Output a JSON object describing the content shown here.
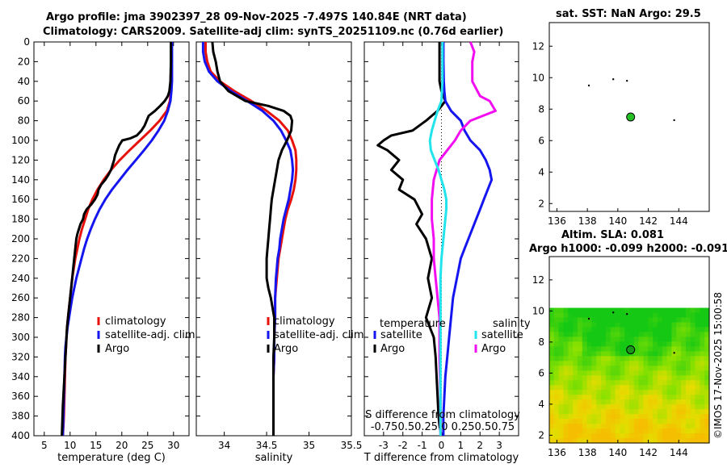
{
  "titles": {
    "main_line1": "Argo profile: jma 3902397_28 09-Nov-2025 -7.497S 140.84E (NRT data)",
    "main_line2": "Climatology: CARS2009. Satellite-adj clim: synTS_20251109.nc (0.76d earlier)",
    "sst": "sat. SST: NaN Argo: 29.5",
    "sla_line1": "Altim. SLA: 0.081",
    "sla_line2": "Argo h1000: -0.099 h2000: -0.091",
    "timestamp": "©IMOS 17-Nov-2025 15:00:58"
  },
  "colors": {
    "red": "#e8120c",
    "blue": "#1515f0",
    "black": "#000000",
    "cyan": "#22e4ec",
    "magenta": "#f20ef0"
  },
  "chart_data": [
    {
      "id": "temperature",
      "type": "line",
      "xlabel": "temperature (deg C)",
      "ylim": [
        0,
        400
      ],
      "xlim": [
        3,
        33
      ],
      "xticks": [
        "5",
        "10",
        "15",
        "20",
        "25",
        "30"
      ],
      "xtick_values": [
        5,
        10,
        15,
        20,
        25,
        30
      ],
      "yticks": [
        "0",
        "20",
        "40",
        "60",
        "80",
        "100",
        "120",
        "140",
        "160",
        "180",
        "200",
        "220",
        "240",
        "260",
        "280",
        "300",
        "320",
        "340",
        "360",
        "380",
        "400"
      ],
      "legend": [
        "climatology",
        "satellite-adj. clim",
        "Argo"
      ],
      "series": [
        {
          "name": "climatology",
          "color": "red",
          "x": [
            29.6,
            29.6,
            29.6,
            29.5,
            29.3,
            28.7,
            27.3,
            25.5,
            23.5,
            21.5,
            19.6,
            17.9,
            16.5,
            15.3,
            14.3,
            13.5,
            12.9,
            12.3,
            11.8,
            11.4,
            11.0,
            10.7,
            10.4,
            10.2,
            10.0,
            9.8,
            9.6,
            9.4,
            9.3,
            9.2,
            9.1,
            9.0,
            8.9,
            8.8,
            8.7,
            8.6
          ],
          "y": [
            0,
            20,
            40,
            50,
            60,
            70,
            80,
            90,
            100,
            110,
            120,
            130,
            140,
            150,
            160,
            170,
            180,
            190,
            200,
            210,
            220,
            230,
            240,
            250,
            260,
            270,
            280,
            290,
            300,
            310,
            320,
            340,
            360,
            380,
            390,
            400
          ]
        },
        {
          "name": "satellite-adj. clim",
          "color": "blue",
          "x": [
            29.7,
            29.7,
            29.7,
            29.6,
            29.4,
            28.9,
            28.2,
            27.1,
            25.8,
            24.3,
            22.7,
            21.1,
            19.6,
            18.1,
            16.8,
            15.7,
            14.8,
            14.0,
            13.3,
            12.7,
            12.2,
            11.7,
            11.2,
            10.8,
            10.4,
            10.1,
            9.8,
            9.5,
            9.3,
            9.1,
            9.0,
            8.9,
            8.8,
            8.7,
            8.6
          ],
          "y": [
            0,
            20,
            40,
            50,
            60,
            70,
            80,
            90,
            100,
            110,
            120,
            130,
            140,
            150,
            160,
            170,
            180,
            190,
            200,
            210,
            220,
            230,
            240,
            250,
            260,
            270,
            280,
            290,
            300,
            310,
            320,
            340,
            360,
            380,
            400
          ]
        },
        {
          "name": "Argo",
          "color": "black",
          "x": [
            29.5,
            29.5,
            29.4,
            29.2,
            28.9,
            28.3,
            27.4,
            26.4,
            25.2,
            24.8,
            24.4,
            23.8,
            22.9,
            21.6,
            20.1,
            19.5,
            19.1,
            18.7,
            18.5,
            18.2,
            17.9,
            17.4,
            16.8,
            16.0,
            15.5,
            15.3,
            14.8,
            14.1,
            13.2,
            12.7,
            12.5,
            12.0,
            11.7,
            11.4,
            11.2,
            11.0,
            10.8,
            10.6,
            10.4,
            10.2,
            10.0,
            9.8,
            9.6,
            9.4,
            9.3,
            9.2,
            9.1,
            9.0,
            8.9,
            8.8,
            8.6,
            8.4
          ],
          "y": [
            0,
            20,
            40,
            50,
            55,
            60,
            65,
            70,
            75,
            80,
            85,
            90,
            95,
            98,
            100,
            105,
            110,
            115,
            120,
            125,
            130,
            135,
            140,
            145,
            150,
            155,
            160,
            165,
            170,
            175,
            180,
            185,
            190,
            195,
            200,
            210,
            220,
            230,
            240,
            250,
            260,
            270,
            280,
            290,
            300,
            310,
            320,
            330,
            340,
            350,
            370,
            400
          ]
        }
      ]
    },
    {
      "id": "salinity",
      "type": "line",
      "xlabel": "salinity",
      "ylim": [
        0,
        400
      ],
      "xlim": [
        33.67,
        35.5
      ],
      "xticks": [
        "34",
        "34.5",
        "35",
        "35.5"
      ],
      "xtick_values": [
        34,
        34.5,
        35,
        35.5
      ],
      "legend": [
        "climatology",
        "satellite-adj. clim",
        "Argo"
      ],
      "series": [
        {
          "name": "climatology",
          "color": "red",
          "x": [
            33.78,
            33.78,
            33.8,
            33.84,
            33.95,
            34.12,
            34.32,
            34.5,
            34.65,
            34.75,
            34.8,
            34.84,
            34.85,
            34.85,
            34.84,
            34.82,
            34.79,
            34.75,
            34.72,
            34.7,
            34.68,
            34.66,
            34.64,
            34.63,
            34.62,
            34.61,
            34.6,
            34.6,
            34.59,
            34.59,
            34.58,
            34.58,
            34.58,
            34.58
          ],
          "y": [
            0,
            10,
            20,
            30,
            40,
            50,
            60,
            70,
            80,
            90,
            100,
            110,
            120,
            130,
            140,
            150,
            160,
            170,
            180,
            190,
            200,
            210,
            220,
            230,
            240,
            250,
            260,
            280,
            300,
            320,
            340,
            360,
            380,
            400
          ]
        },
        {
          "name": "satellite-adj. clim",
          "color": "blue",
          "x": [
            33.75,
            33.75,
            33.77,
            33.82,
            33.92,
            34.08,
            34.27,
            34.45,
            34.58,
            34.67,
            34.73,
            34.78,
            34.8,
            34.81,
            34.8,
            34.78,
            34.76,
            34.73,
            34.7,
            34.68,
            34.66,
            34.65,
            34.63,
            34.62,
            34.61,
            34.6,
            34.6,
            34.59,
            34.59,
            34.58,
            34.58,
            34.58,
            34.58
          ],
          "y": [
            0,
            10,
            20,
            30,
            40,
            50,
            60,
            70,
            80,
            90,
            100,
            110,
            120,
            130,
            140,
            150,
            160,
            170,
            180,
            190,
            200,
            210,
            220,
            230,
            240,
            260,
            280,
            300,
            320,
            340,
            360,
            380,
            400
          ]
        },
        {
          "name": "Argo",
          "color": "black",
          "x": [
            33.86,
            33.87,
            33.9,
            33.92,
            33.95,
            34.05,
            34.25,
            34.52,
            34.7,
            34.78,
            34.8,
            34.79,
            34.74,
            34.68,
            34.64,
            34.62,
            34.6,
            34.58,
            34.56,
            34.55,
            34.54,
            34.53,
            34.52,
            34.51,
            34.5,
            34.5,
            34.5,
            34.52,
            34.55,
            34.57,
            34.59,
            34.59,
            34.59,
            34.58,
            34.58,
            34.58,
            34.58
          ],
          "y": [
            0,
            10,
            20,
            30,
            40,
            50,
            60,
            65,
            70,
            75,
            80,
            90,
            100,
            110,
            120,
            130,
            140,
            150,
            160,
            170,
            180,
            190,
            200,
            210,
            220,
            230,
            240,
            250,
            260,
            270,
            280,
            290,
            300,
            320,
            350,
            380,
            400
          ]
        }
      ]
    },
    {
      "id": "differences",
      "type": "line",
      "xlabel": "T difference from climatology",
      "title_bottom_line1": "S difference from climatology",
      "title_bottom_line2": "-0.750.50.25  0  0.250.50.75",
      "ylim": [
        0,
        400
      ],
      "xlim": [
        -4.0,
        4.0
      ],
      "xticks": [
        "-3",
        "-2",
        "-1",
        "0",
        "1",
        "2",
        "3"
      ],
      "xtick_values": [
        -3,
        -2,
        -1,
        0,
        1,
        2,
        3
      ],
      "legend_headers": [
        "temperature",
        "salinity"
      ],
      "legend": [
        "satellite",
        "Argo",
        "satellite",
        "Argo"
      ],
      "series": [
        {
          "name": "temperature satellite",
          "color": "blue",
          "x": [
            0.1,
            0.1,
            0.12,
            0.15,
            0.2,
            0.5,
            1.0,
            1.2,
            1.5,
            2.0,
            2.3,
            2.5,
            2.6,
            2.4,
            2.2,
            2.0,
            1.8,
            1.6,
            1.4,
            1.2,
            1.0,
            0.8,
            0.6,
            0.5,
            0.4,
            0.3,
            0.2,
            0.15,
            0.1,
            0.1
          ],
          "y": [
            0,
            20,
            40,
            50,
            60,
            70,
            80,
            90,
            100,
            110,
            120,
            130,
            140,
            150,
            160,
            170,
            180,
            190,
            200,
            210,
            220,
            240,
            260,
            280,
            300,
            320,
            340,
            360,
            380,
            400
          ]
        },
        {
          "name": "temperature Argo",
          "color": "black",
          "x": [
            -0.1,
            -0.1,
            -0.1,
            0,
            0.2,
            -0.2,
            -0.8,
            -1.5,
            -2.6,
            -3.0,
            -3.3,
            -2.8,
            -2.2,
            -2.6,
            -2.0,
            -2.2,
            -1.4,
            -1.0,
            -1.3,
            -0.8,
            -0.5,
            -0.7,
            -0.5,
            -0.8,
            -0.4,
            -0.3,
            -0.25,
            -0.2,
            -0.15,
            -0.1,
            0
          ],
          "y": [
            0,
            20,
            40,
            50,
            60,
            70,
            80,
            90,
            95,
            100,
            105,
            110,
            120,
            130,
            140,
            150,
            160,
            175,
            185,
            200,
            220,
            240,
            260,
            280,
            300,
            320,
            340,
            360,
            380,
            390,
            400
          ]
        },
        {
          "name": "salinity satellite",
          "color": "cyan",
          "x": [
            0.05,
            0.05,
            0.05,
            0.0,
            -0.2,
            -0.35,
            -0.5,
            -0.6,
            -0.55,
            -0.35,
            -0.15,
            0.0,
            0.15,
            0.25,
            0.25,
            0.2,
            0.1,
            0.0,
            -0.05,
            -0.05,
            -0.05,
            -0.05,
            -0.05
          ],
          "y": [
            0,
            20,
            40,
            60,
            70,
            80,
            90,
            100,
            110,
            120,
            130,
            140,
            150,
            160,
            170,
            180,
            200,
            220,
            240,
            280,
            320,
            360,
            400
          ]
        },
        {
          "name": "salinity Argo",
          "color": "magenta",
          "x": [
            1.5,
            1.7,
            1.6,
            1.6,
            2.0,
            2.5,
            2.8,
            1.5,
            1.0,
            0.7,
            0.3,
            -0.1,
            -0.4,
            -0.5,
            -0.5,
            -0.4,
            -0.4,
            -0.3,
            -0.2,
            -0.1,
            -0.1,
            -0.05,
            -0.05
          ],
          "y": [
            0,
            10,
            20,
            40,
            55,
            60,
            70,
            80,
            90,
            100,
            110,
            120,
            140,
            160,
            180,
            200,
            220,
            240,
            260,
            280,
            320,
            360,
            400
          ]
        }
      ]
    },
    {
      "id": "sst_map",
      "type": "scatter",
      "xlim": [
        135.5,
        146
      ],
      "ylim": [
        1.5,
        13.5
      ],
      "xticks": [
        "136",
        "138",
        "140",
        "142",
        "144"
      ],
      "xtick_values": [
        136,
        138,
        140,
        142,
        144
      ],
      "yticks": [
        "2",
        "4",
        "6",
        "8",
        "10",
        "12"
      ],
      "ytick_values": [
        2,
        4,
        6,
        8,
        10,
        12
      ],
      "argo_position": {
        "lon": 140.84,
        "lat": 7.5
      }
    },
    {
      "id": "sla_map",
      "type": "heatmap",
      "xlim": [
        135.5,
        146
      ],
      "ylim": [
        1.5,
        13.5
      ],
      "xticks": [
        "136",
        "138",
        "140",
        "142",
        "144"
      ],
      "xtick_values": [
        136,
        138,
        140,
        142,
        144
      ],
      "yticks": [
        "2",
        "4",
        "6",
        "8",
        "10",
        "12"
      ],
      "ytick_values": [
        2,
        4,
        6,
        8,
        10,
        12
      ],
      "data_lat_range": [
        1.5,
        10.2
      ],
      "argo_position": {
        "lon": 140.84,
        "lat": 7.5
      }
    }
  ]
}
